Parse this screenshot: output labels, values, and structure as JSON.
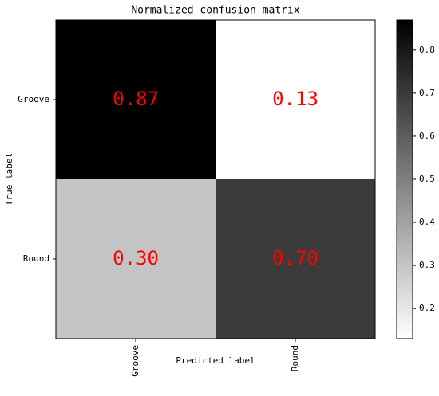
{
  "chart_data": {
    "type": "heatmap",
    "title": "Normalized confusion matrix",
    "xlabel": "Predicted label",
    "ylabel": "True label",
    "x_categories": [
      "Groove",
      "Round"
    ],
    "y_categories": [
      "Groove",
      "Round"
    ],
    "values": [
      [
        0.87,
        0.13
      ],
      [
        0.3,
        0.7
      ]
    ],
    "value_labels": [
      [
        "0.87",
        "0.13"
      ],
      [
        "0.30",
        "0.70"
      ]
    ],
    "value_label_color": "#ff0000",
    "cmap": [
      "#ffffff",
      "#000000"
    ],
    "colorbar": {
      "lim": [
        0.13,
        0.87
      ],
      "ticks": [
        0.2,
        0.3,
        0.4,
        0.5,
        0.6,
        0.7,
        0.8
      ]
    }
  }
}
